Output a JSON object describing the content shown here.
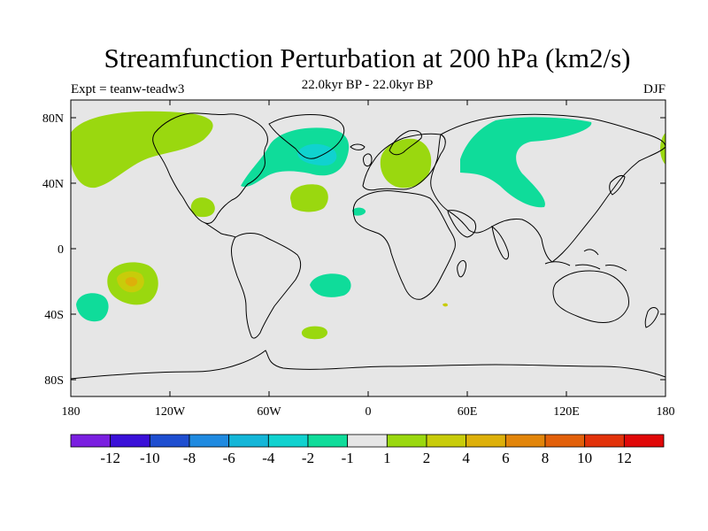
{
  "title": "Streamfunction Perturbation at 200 hPa (km2/s)",
  "subtitle": "22.0kyr BP - 22.0kyr BP",
  "experiment": "Expt = teanw-teadw3",
  "season": "DJF",
  "axes": {
    "lon_ticks": [
      "180",
      "120W",
      "60W",
      "0",
      "60E",
      "120E",
      "180"
    ],
    "lat_ticks": [
      "80N",
      "40N",
      "0",
      "40S",
      "80S"
    ]
  },
  "colorbar": {
    "colors": [
      "#7a1fe0",
      "#3a10d8",
      "#1e4ed0",
      "#1f8ae0",
      "#14b6d8",
      "#10d2cf",
      "#0fdc9a",
      "#e6e6e6",
      "#9ad80f",
      "#c8cc0a",
      "#ddb00a",
      "#e2850a",
      "#e2600a",
      "#e2320a",
      "#e00808"
    ],
    "labels": [
      "-12",
      "-10",
      "-8",
      "-6",
      "-4",
      "-2",
      "-1",
      "1",
      "2",
      "4",
      "6",
      "8",
      "10",
      "12"
    ]
  },
  "colors": {
    "land_background": "#e6e6e6",
    "anomaly_teal": "#0fdc9a",
    "anomaly_cyan": "#10d2cf",
    "anomaly_lime": "#9ad80f",
    "anomaly_yellow": "#c8cc0a",
    "anomaly_orange": "#ddb00a"
  }
}
